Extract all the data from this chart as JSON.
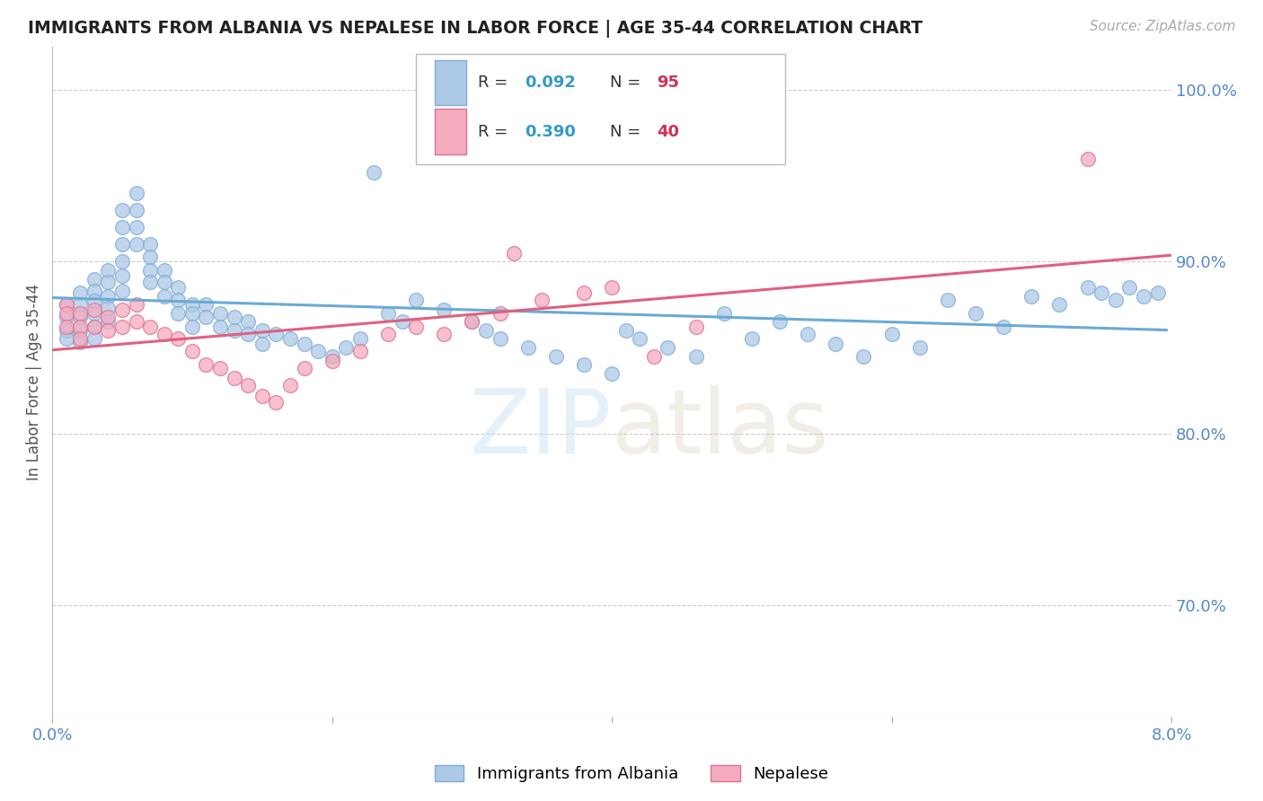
{
  "title": "IMMIGRANTS FROM ALBANIA VS NEPALESE IN LABOR FORCE | AGE 35-44 CORRELATION CHART",
  "source": "Source: ZipAtlas.com",
  "ylabel": "In Labor Force | Age 35-44",
  "ytick_labels": [
    "70.0%",
    "80.0%",
    "90.0%",
    "100.0%"
  ],
  "ytick_values": [
    0.7,
    0.8,
    0.9,
    1.0
  ],
  "xmin": 0.0,
  "xmax": 0.08,
  "ymin": 0.635,
  "ymax": 1.025,
  "albania_color": "#adc9e8",
  "albania_edge_color": "#80acd4",
  "nepalese_color": "#f5abbe",
  "nepalese_edge_color": "#e07090",
  "albania_line_color": "#6aaad4",
  "nepalese_line_color": "#e06080",
  "albania_R": 0.092,
  "albania_N": 95,
  "nepalese_R": 0.39,
  "nepalese_N": 40,
  "legend_label_albania": "Immigrants from Albania",
  "legend_label_nepalese": "Nepalese",
  "watermark_zip": "ZIP",
  "watermark_atlas": "atlas",
  "background_color": "#ffffff",
  "grid_color": "#cccccc",
  "title_color": "#222222",
  "axis_label_color": "#5588cc",
  "legend_r_color": "#3399cc",
  "legend_n_color": "#cc3355",
  "legend_text_color": "#333333",
  "alb_line_intercept": 0.873,
  "alb_line_slope": 0.21,
  "nep_line_intercept": 0.82,
  "nep_line_slope": 1.55,
  "alb_data_x": [
    0.001,
    0.001,
    0.001,
    0.001,
    0.002,
    0.002,
    0.002,
    0.002,
    0.002,
    0.003,
    0.003,
    0.003,
    0.003,
    0.003,
    0.003,
    0.004,
    0.004,
    0.004,
    0.004,
    0.004,
    0.005,
    0.005,
    0.005,
    0.005,
    0.005,
    0.005,
    0.006,
    0.006,
    0.006,
    0.006,
    0.007,
    0.007,
    0.007,
    0.007,
    0.008,
    0.008,
    0.008,
    0.009,
    0.009,
    0.009,
    0.01,
    0.01,
    0.01,
    0.011,
    0.011,
    0.012,
    0.012,
    0.013,
    0.013,
    0.014,
    0.014,
    0.015,
    0.015,
    0.016,
    0.017,
    0.018,
    0.019,
    0.02,
    0.021,
    0.022,
    0.023,
    0.024,
    0.025,
    0.026,
    0.028,
    0.03,
    0.031,
    0.032,
    0.034,
    0.036,
    0.038,
    0.04,
    0.041,
    0.042,
    0.044,
    0.046,
    0.048,
    0.05,
    0.052,
    0.054,
    0.056,
    0.058,
    0.06,
    0.062,
    0.064,
    0.066,
    0.068,
    0.07,
    0.072,
    0.074,
    0.075,
    0.076,
    0.077,
    0.078,
    0.079
  ],
  "alb_data_y": [
    0.875,
    0.868,
    0.86,
    0.855,
    0.882,
    0.875,
    0.868,
    0.86,
    0.853,
    0.89,
    0.883,
    0.877,
    0.87,
    0.862,
    0.855,
    0.895,
    0.888,
    0.88,
    0.873,
    0.865,
    0.93,
    0.92,
    0.91,
    0.9,
    0.892,
    0.883,
    0.94,
    0.93,
    0.92,
    0.91,
    0.91,
    0.903,
    0.895,
    0.888,
    0.895,
    0.888,
    0.88,
    0.885,
    0.878,
    0.87,
    0.875,
    0.87,
    0.862,
    0.875,
    0.868,
    0.87,
    0.862,
    0.868,
    0.86,
    0.865,
    0.858,
    0.86,
    0.852,
    0.858,
    0.855,
    0.852,
    0.848,
    0.845,
    0.85,
    0.855,
    0.952,
    0.87,
    0.865,
    0.878,
    0.872,
    0.865,
    0.86,
    0.855,
    0.85,
    0.845,
    0.84,
    0.835,
    0.86,
    0.855,
    0.85,
    0.845,
    0.87,
    0.855,
    0.865,
    0.858,
    0.852,
    0.845,
    0.858,
    0.85,
    0.878,
    0.87,
    0.862,
    0.88,
    0.875,
    0.885,
    0.882,
    0.878,
    0.885,
    0.88,
    0.882
  ],
  "nep_data_x": [
    0.001,
    0.001,
    0.001,
    0.002,
    0.002,
    0.002,
    0.003,
    0.003,
    0.004,
    0.004,
    0.005,
    0.005,
    0.006,
    0.006,
    0.007,
    0.008,
    0.009,
    0.01,
    0.011,
    0.012,
    0.013,
    0.014,
    0.015,
    0.016,
    0.017,
    0.018,
    0.02,
    0.022,
    0.024,
    0.026,
    0.028,
    0.03,
    0.032,
    0.033,
    0.035,
    0.038,
    0.04,
    0.043,
    0.046,
    0.074
  ],
  "nep_data_y": [
    0.875,
    0.87,
    0.862,
    0.87,
    0.862,
    0.855,
    0.872,
    0.862,
    0.868,
    0.86,
    0.872,
    0.862,
    0.875,
    0.865,
    0.862,
    0.858,
    0.855,
    0.848,
    0.84,
    0.838,
    0.832,
    0.828,
    0.822,
    0.818,
    0.828,
    0.838,
    0.842,
    0.848,
    0.858,
    0.862,
    0.858,
    0.865,
    0.87,
    0.905,
    0.878,
    0.882,
    0.885,
    0.845,
    0.862,
    0.96
  ]
}
